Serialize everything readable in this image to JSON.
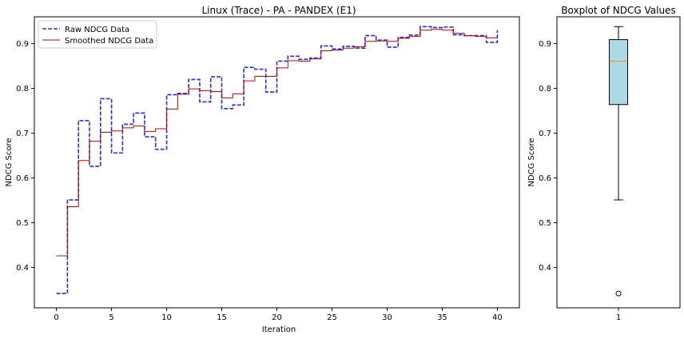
{
  "chart_data": [
    {
      "type": "line",
      "title": "Linux (Trace) - PA - PANDEX (E1)",
      "xlabel": "Iteration",
      "ylabel": "NDCG Score",
      "xlim": [
        -2,
        42
      ],
      "ylim": [
        0.31,
        0.96
      ],
      "x_ticks": [
        0,
        5,
        10,
        15,
        20,
        25,
        30,
        35,
        40
      ],
      "y_ticks": [
        0.4,
        0.5,
        0.6,
        0.7,
        0.8,
        0.9
      ],
      "step": "post",
      "grid": false,
      "legend_position": "upper left",
      "series": [
        {
          "name": "Raw NDCG Data",
          "style": "dashed",
          "color": "#2a2ae6",
          "x": [
            0,
            1,
            2,
            3,
            4,
            5,
            6,
            7,
            8,
            9,
            10,
            11,
            12,
            13,
            14,
            15,
            16,
            17,
            18,
            19,
            20,
            21,
            22,
            23,
            24,
            25,
            26,
            27,
            28,
            29,
            30,
            31,
            32,
            33,
            34,
            35,
            36,
            37,
            38,
            39,
            40
          ],
          "y": [
            0.342,
            0.551,
            0.728,
            0.626,
            0.777,
            0.656,
            0.72,
            0.745,
            0.692,
            0.664,
            0.786,
            0.789,
            0.82,
            0.77,
            0.826,
            0.755,
            0.763,
            0.847,
            0.843,
            0.792,
            0.861,
            0.872,
            0.865,
            0.868,
            0.895,
            0.888,
            0.894,
            0.89,
            0.918,
            0.908,
            0.892,
            0.914,
            0.919,
            0.938,
            0.936,
            0.937,
            0.92,
            0.918,
            0.918,
            0.903,
            0.93
          ]
        },
        {
          "name": "Smoothed NDCG Data",
          "style": "solid",
          "color": "#cc0000",
          "x": [
            0,
            1,
            2,
            3,
            4,
            5,
            6,
            7,
            8,
            9,
            10,
            11,
            12,
            13,
            14,
            15,
            16,
            17,
            18,
            19,
            20,
            21,
            22,
            23,
            24,
            25,
            26,
            27,
            28,
            29,
            30,
            31,
            32,
            33,
            34,
            35,
            36,
            37,
            38,
            39,
            40
          ],
          "y": [
            0.426,
            0.536,
            0.639,
            0.682,
            0.702,
            0.705,
            0.712,
            0.716,
            0.704,
            0.71,
            0.754,
            0.787,
            0.799,
            0.795,
            0.793,
            0.779,
            0.788,
            0.817,
            0.827,
            0.827,
            0.846,
            0.862,
            0.861,
            0.866,
            0.884,
            0.886,
            0.89,
            0.893,
            0.905,
            0.906,
            0.905,
            0.912,
            0.916,
            0.93,
            0.932,
            0.93,
            0.923,
            0.918,
            0.916,
            0.913,
            0.914
          ]
        }
      ]
    },
    {
      "type": "box",
      "title": "Boxplot of NDCG Values",
      "ylabel": "NDCG Score",
      "categories": [
        "1"
      ],
      "ylim": [
        0.31,
        0.96
      ],
      "y_ticks": [
        0.4,
        0.5,
        0.6,
        0.7,
        0.8,
        0.9
      ],
      "box": {
        "whisker_low": 0.551,
        "q1": 0.764,
        "median": 0.861,
        "q3": 0.909,
        "whisker_high": 0.938,
        "outliers": [
          0.342
        ]
      },
      "colors": {
        "box_fill": "#add8e6",
        "median": "#ff7f0e"
      }
    }
  ]
}
